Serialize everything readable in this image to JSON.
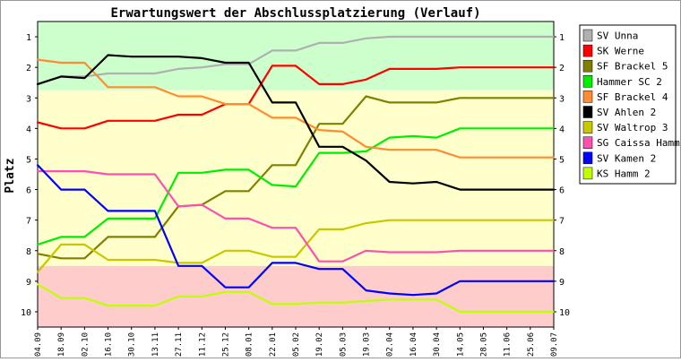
{
  "chart_data": {
    "type": "line",
    "title": "Erwartungswert der Abschlussplatzierung (Verlauf)",
    "ylabel": "Platz",
    "xlabel": "",
    "ylim": [
      0.5,
      10.5
    ],
    "y_inverted": true,
    "y_ticks": [
      "1",
      "2",
      "3",
      "4",
      "5",
      "6",
      "7",
      "8",
      "9",
      "10"
    ],
    "categories": [
      "04.09",
      "18.09",
      "02.10",
      "16.10",
      "30.10",
      "13.11",
      "27.11",
      "11.12",
      "25.12",
      "08.01",
      "22.01",
      "05.02",
      "19.02",
      "05.03",
      "19.03",
      "02.04",
      "16.04",
      "30.04",
      "14.05",
      "28.05",
      "11.06",
      "25.06",
      "09.07"
    ],
    "background_bands": [
      {
        "from": 0.5,
        "to": 2.75,
        "color": "#ccffcc"
      },
      {
        "from": 2.75,
        "to": 8.5,
        "color": "#ffffcc"
      },
      {
        "from": 8.5,
        "to": 10.5,
        "color": "#ffcccc"
      }
    ],
    "legend_position": "right",
    "series": [
      {
        "name": "SV Unna",
        "color": "#b0b0b0",
        "points": [
          [
            0,
            2.55
          ],
          [
            1,
            2.3
          ],
          [
            2,
            2.3
          ],
          [
            3,
            2.2
          ],
          [
            4,
            2.2
          ],
          [
            5,
            2.2
          ],
          [
            6,
            2.05
          ],
          [
            7,
            2.0
          ],
          [
            8,
            1.9
          ],
          [
            9,
            1.9
          ],
          [
            10,
            1.45
          ],
          [
            11,
            1.45
          ],
          [
            12,
            1.2
          ],
          [
            13,
            1.2
          ],
          [
            14,
            1.05
          ],
          [
            15,
            1.0
          ],
          [
            16,
            1.0
          ],
          [
            17,
            1.0
          ],
          [
            18,
            1.0
          ],
          [
            19,
            1.0
          ],
          [
            20,
            1.0
          ],
          [
            21,
            1.0
          ],
          [
            22,
            1.0
          ]
        ]
      },
      {
        "name": "SK Werne",
        "color": "#ff0000",
        "points": [
          [
            0,
            3.8
          ],
          [
            1,
            4.0
          ],
          [
            2,
            4.0
          ],
          [
            3,
            3.75
          ],
          [
            4,
            3.75
          ],
          [
            5,
            3.75
          ],
          [
            6,
            3.55
          ],
          [
            7,
            3.55
          ],
          [
            8,
            3.2
          ],
          [
            9,
            3.2
          ],
          [
            10,
            1.95
          ],
          [
            11,
            1.95
          ],
          [
            12,
            2.55
          ],
          [
            13,
            2.55
          ],
          [
            14,
            2.4
          ],
          [
            15,
            2.05
          ],
          [
            16,
            2.05
          ],
          [
            17,
            2.05
          ],
          [
            18,
            2.0
          ],
          [
            19,
            2.0
          ],
          [
            20,
            2.0
          ],
          [
            21,
            2.0
          ],
          [
            22,
            2.0
          ]
        ]
      },
      {
        "name": "SF Brackel 5",
        "color": "#808000",
        "points": [
          [
            0,
            8.1
          ],
          [
            1,
            8.25
          ],
          [
            2,
            8.25
          ],
          [
            3,
            7.55
          ],
          [
            4,
            7.55
          ],
          [
            5,
            7.55
          ],
          [
            6,
            6.55
          ],
          [
            7,
            6.5
          ],
          [
            8,
            6.05
          ],
          [
            9,
            6.05
          ],
          [
            10,
            5.2
          ],
          [
            11,
            5.2
          ],
          [
            12,
            3.85
          ],
          [
            13,
            3.85
          ],
          [
            14,
            2.95
          ],
          [
            15,
            3.15
          ],
          [
            16,
            3.15
          ],
          [
            17,
            3.15
          ],
          [
            18,
            3.0
          ],
          [
            19,
            3.0
          ],
          [
            20,
            3.0
          ],
          [
            21,
            3.0
          ],
          [
            22,
            3.0
          ]
        ]
      },
      {
        "name": "Hammer SC 2",
        "color": "#00ee00",
        "points": [
          [
            0,
            7.8
          ],
          [
            1,
            7.55
          ],
          [
            2,
            7.55
          ],
          [
            3,
            6.95
          ],
          [
            4,
            6.95
          ],
          [
            5,
            6.95
          ],
          [
            6,
            5.45
          ],
          [
            7,
            5.45
          ],
          [
            8,
            5.35
          ],
          [
            9,
            5.35
          ],
          [
            10,
            5.85
          ],
          [
            11,
            5.9
          ],
          [
            12,
            4.8
          ],
          [
            13,
            4.8
          ],
          [
            14,
            4.75
          ],
          [
            15,
            4.3
          ],
          [
            16,
            4.25
          ],
          [
            17,
            4.3
          ],
          [
            18,
            4.0
          ],
          [
            19,
            4.0
          ],
          [
            20,
            4.0
          ],
          [
            21,
            4.0
          ],
          [
            22,
            4.0
          ]
        ]
      },
      {
        "name": "SF Brackel 4",
        "color": "#ff8c30",
        "points": [
          [
            0,
            1.75
          ],
          [
            1,
            1.85
          ],
          [
            2,
            1.85
          ],
          [
            3,
            2.65
          ],
          [
            4,
            2.65
          ],
          [
            5,
            2.65
          ],
          [
            6,
            2.95
          ],
          [
            7,
            2.95
          ],
          [
            8,
            3.2
          ],
          [
            9,
            3.2
          ],
          [
            10,
            3.65
          ],
          [
            11,
            3.65
          ],
          [
            12,
            4.05
          ],
          [
            13,
            4.1
          ],
          [
            14,
            4.6
          ],
          [
            15,
            4.7
          ],
          [
            16,
            4.7
          ],
          [
            17,
            4.7
          ],
          [
            18,
            4.95
          ],
          [
            19,
            4.95
          ],
          [
            20,
            4.95
          ],
          [
            21,
            4.95
          ],
          [
            22,
            4.95
          ]
        ]
      },
      {
        "name": "SV Ahlen 2",
        "color": "#000000",
        "points": [
          [
            0,
            2.55
          ],
          [
            1,
            2.3
          ],
          [
            2,
            2.35
          ],
          [
            3,
            1.6
          ],
          [
            4,
            1.65
          ],
          [
            5,
            1.65
          ],
          [
            6,
            1.65
          ],
          [
            7,
            1.7
          ],
          [
            8,
            1.85
          ],
          [
            9,
            1.85
          ],
          [
            10,
            3.15
          ],
          [
            11,
            3.15
          ],
          [
            12,
            4.6
          ],
          [
            13,
            4.6
          ],
          [
            14,
            5.05
          ],
          [
            15,
            5.75
          ],
          [
            16,
            5.8
          ],
          [
            17,
            5.75
          ],
          [
            18,
            6.0
          ],
          [
            19,
            6.0
          ],
          [
            20,
            6.0
          ],
          [
            21,
            6.0
          ],
          [
            22,
            6.0
          ]
        ]
      },
      {
        "name": "SV Waltrop 3",
        "color": "#c8c800",
        "points": [
          [
            0,
            8.7
          ],
          [
            1,
            7.8
          ],
          [
            2,
            7.8
          ],
          [
            3,
            8.3
          ],
          [
            4,
            8.3
          ],
          [
            5,
            8.3
          ],
          [
            6,
            8.4
          ],
          [
            7,
            8.4
          ],
          [
            8,
            8.0
          ],
          [
            9,
            8.0
          ],
          [
            10,
            8.2
          ],
          [
            11,
            8.2
          ],
          [
            12,
            7.3
          ],
          [
            13,
            7.3
          ],
          [
            14,
            7.1
          ],
          [
            15,
            7.0
          ],
          [
            16,
            7.0
          ],
          [
            17,
            7.0
          ],
          [
            18,
            7.0
          ],
          [
            19,
            7.0
          ],
          [
            20,
            7.0
          ],
          [
            21,
            7.0
          ],
          [
            22,
            7.0
          ]
        ]
      },
      {
        "name": "SG Caissa Hamm",
        "color": "#ff4faf",
        "points": [
          [
            0,
            5.4
          ],
          [
            1,
            5.4
          ],
          [
            2,
            5.4
          ],
          [
            3,
            5.5
          ],
          [
            4,
            5.5
          ],
          [
            5,
            5.5
          ],
          [
            6,
            6.55
          ],
          [
            7,
            6.5
          ],
          [
            8,
            6.95
          ],
          [
            9,
            6.95
          ],
          [
            10,
            7.25
          ],
          [
            11,
            7.25
          ],
          [
            12,
            8.35
          ],
          [
            13,
            8.35
          ],
          [
            14,
            8.0
          ],
          [
            15,
            8.05
          ],
          [
            16,
            8.05
          ],
          [
            17,
            8.05
          ],
          [
            18,
            8.0
          ],
          [
            19,
            8.0
          ],
          [
            20,
            8.0
          ],
          [
            21,
            8.0
          ],
          [
            22,
            8.0
          ]
        ]
      },
      {
        "name": "SV Kamen 2",
        "color": "#0000ff",
        "points": [
          [
            0,
            5.2
          ],
          [
            1,
            6.0
          ],
          [
            2,
            6.0
          ],
          [
            3,
            6.7
          ],
          [
            4,
            6.7
          ],
          [
            5,
            6.7
          ],
          [
            6,
            8.5
          ],
          [
            7,
            8.5
          ],
          [
            8,
            9.2
          ],
          [
            9,
            9.2
          ],
          [
            10,
            8.4
          ],
          [
            11,
            8.4
          ],
          [
            12,
            8.6
          ],
          [
            13,
            8.6
          ],
          [
            14,
            9.3
          ],
          [
            15,
            9.4
          ],
          [
            16,
            9.45
          ],
          [
            17,
            9.4
          ],
          [
            18,
            9.0
          ],
          [
            19,
            9.0
          ],
          [
            20,
            9.0
          ],
          [
            21,
            9.0
          ],
          [
            22,
            9.0
          ]
        ]
      },
      {
        "name": "KS Hamm 2",
        "color": "#c0ff00",
        "points": [
          [
            0,
            9.1
          ],
          [
            1,
            9.55
          ],
          [
            2,
            9.55
          ],
          [
            3,
            9.8
          ],
          [
            4,
            9.8
          ],
          [
            5,
            9.8
          ],
          [
            6,
            9.5
          ],
          [
            7,
            9.5
          ],
          [
            8,
            9.35
          ],
          [
            9,
            9.35
          ],
          [
            10,
            9.75
          ],
          [
            11,
            9.75
          ],
          [
            12,
            9.7
          ],
          [
            13,
            9.7
          ],
          [
            14,
            9.65
          ],
          [
            15,
            9.6
          ],
          [
            16,
            9.6
          ],
          [
            17,
            9.6
          ],
          [
            18,
            10.0
          ],
          [
            19,
            10.0
          ],
          [
            20,
            10.0
          ],
          [
            21,
            10.0
          ],
          [
            22,
            10.0
          ]
        ]
      }
    ]
  }
}
